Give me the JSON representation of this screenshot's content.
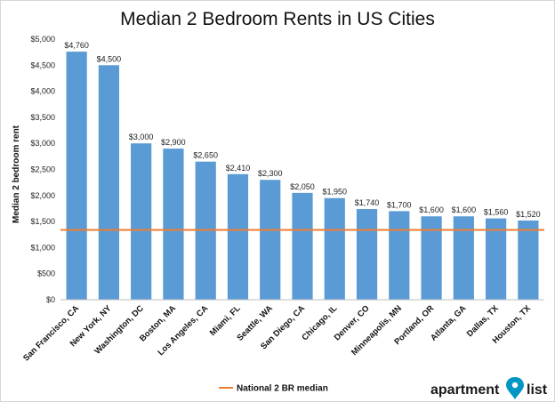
{
  "chart_data": {
    "type": "bar",
    "title": "Median 2 Bedroom Rents in US Cities",
    "xlabel": "",
    "ylabel": "Median 2 bedroom rent",
    "ylim": [
      0,
      5000
    ],
    "yticks": [
      "$0",
      "$500",
      "$1,000",
      "$1,500",
      "$2,000",
      "$2,500",
      "$3,000",
      "$3,500",
      "$4,000",
      "$4,500",
      "$5,000"
    ],
    "ytick_values": [
      0,
      500,
      1000,
      1500,
      2000,
      2500,
      3000,
      3500,
      4000,
      4500,
      5000
    ],
    "grid": false,
    "categories": [
      "San Francisco, CA",
      "New York, NY",
      "Washington, DC",
      "Boston, MA",
      "Los Angeles, CA",
      "Miami, FL",
      "Seattle, WA",
      "San Diego, CA",
      "Chicago, IL",
      "Denver, CO",
      "Minneapolis, MN",
      "Portland, OR",
      "Atlanta, GA",
      "Dallas, TX",
      "Houston, TX"
    ],
    "values": [
      4760,
      4500,
      3000,
      2900,
      2650,
      2410,
      2300,
      2050,
      1950,
      1740,
      1700,
      1600,
      1600,
      1560,
      1520
    ],
    "data_labels": [
      "$4,760",
      "$4,500",
      "$3,000",
      "$2,900",
      "$2,650",
      "$2,410",
      "$2,300",
      "$2,050",
      "$1,950",
      "$1,740",
      "$1,700",
      "$1,600",
      "$1,600",
      "$1,560",
      "$1,520"
    ],
    "reference_line": {
      "name": "National 2 BR median",
      "value": 1340
    },
    "legend_position": "bottom-left",
    "colors": {
      "bar": "#5b9bd5",
      "reference_line": "#ed7d31"
    }
  },
  "logo": {
    "text_left": "apartment",
    "text_right": "list",
    "accent": "#0097c4"
  }
}
